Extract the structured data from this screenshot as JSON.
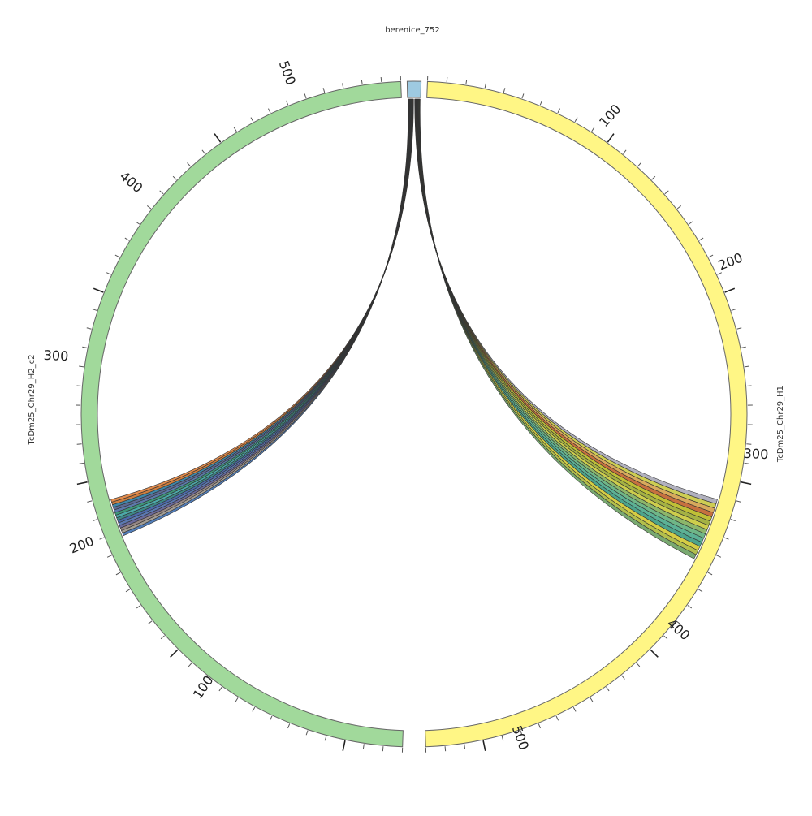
{
  "diagram": {
    "type": "circos-chord",
    "segments": [
      {
        "id": "berenice",
        "label": "berenice_752",
        "color": "#9ecae1",
        "length": 3,
        "tick_labels": []
      },
      {
        "id": "H1",
        "label": "TcDm25_Chr29_H1",
        "color": "#fff685",
        "length": 530,
        "tick_labels": [
          "100",
          "200",
          "300",
          "400",
          "500"
        ]
      },
      {
        "id": "H2",
        "label": "TcDm25_Chr29_H2_c2",
        "color": "#a1d99b",
        "length": 530,
        "tick_labels": [
          "100",
          "200",
          "300",
          "400",
          "500"
        ]
      }
    ],
    "link_groups": [
      {
        "from": "berenice",
        "to": "H1",
        "colors": [
          "#a9a9b7",
          "#c8c840",
          "#d4a04a",
          "#c0602a",
          "#b8b820",
          "#9aa830",
          "#c8c838",
          "#7fae5a",
          "#5fae7a",
          "#4aa88a",
          "#3a9a80",
          "#d0c830",
          "#aab838",
          "#6aa060"
        ]
      },
      {
        "from": "berenice",
        "to": "H2",
        "colors": [
          "#3f6fb0",
          "#9a9488",
          "#8a7a78",
          "#5a5a90",
          "#4a6aa8",
          "#3a5aa0",
          "#2a7a7a",
          "#3aa0a0",
          "#2a8a6a",
          "#4a6aa0",
          "#4a5a88",
          "#2a7aa0",
          "#c8702a",
          "#e0803a"
        ]
      }
    ]
  }
}
